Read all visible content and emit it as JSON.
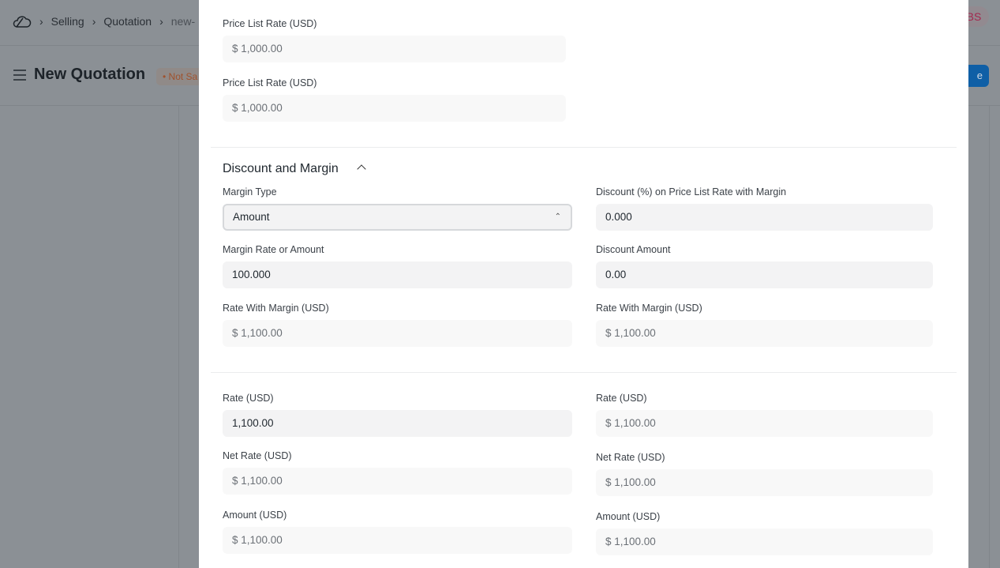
{
  "breadcrumbs": [
    "Selling",
    "Quotation",
    "new-"
  ],
  "page_title": "New Quotation",
  "status_badge": "• Not Sa",
  "avatar": "BS",
  "save_label": "e",
  "top_fields": [
    {
      "label": "Price List Rate (USD)",
      "value": "$ 1,000.00"
    },
    {
      "label": "Price List Rate (USD)",
      "value": "$ 1,000.00"
    }
  ],
  "section_title": "Discount and Margin",
  "margin_type": {
    "label": "Margin Type",
    "value": "Amount"
  },
  "left": [
    {
      "label": "Margin Rate or Amount",
      "value": "100.000"
    },
    {
      "label": "Rate With Margin (USD)",
      "value": "$ 1,100.00"
    }
  ],
  "right": [
    {
      "label": "Discount (%) on Price List Rate with Margin",
      "value": "0.000"
    },
    {
      "label": "Discount Amount",
      "value": "0.00"
    },
    {
      "label": "Rate With Margin (USD)",
      "value": "$ 1,100.00"
    }
  ],
  "rates_left": [
    {
      "label": "Rate (USD)",
      "value": "1,100.00"
    },
    {
      "label": "Net Rate (USD)",
      "value": "$ 1,100.00"
    },
    {
      "label": "Amount (USD)",
      "value": "$ 1,100.00"
    }
  ],
  "rates_right": [
    {
      "label": "Rate (USD)",
      "value": "$ 1,100.00"
    },
    {
      "label": "Net Rate (USD)",
      "value": "$ 1,100.00"
    },
    {
      "label": "Amount (USD)",
      "value": "$ 1,100.00"
    }
  ]
}
